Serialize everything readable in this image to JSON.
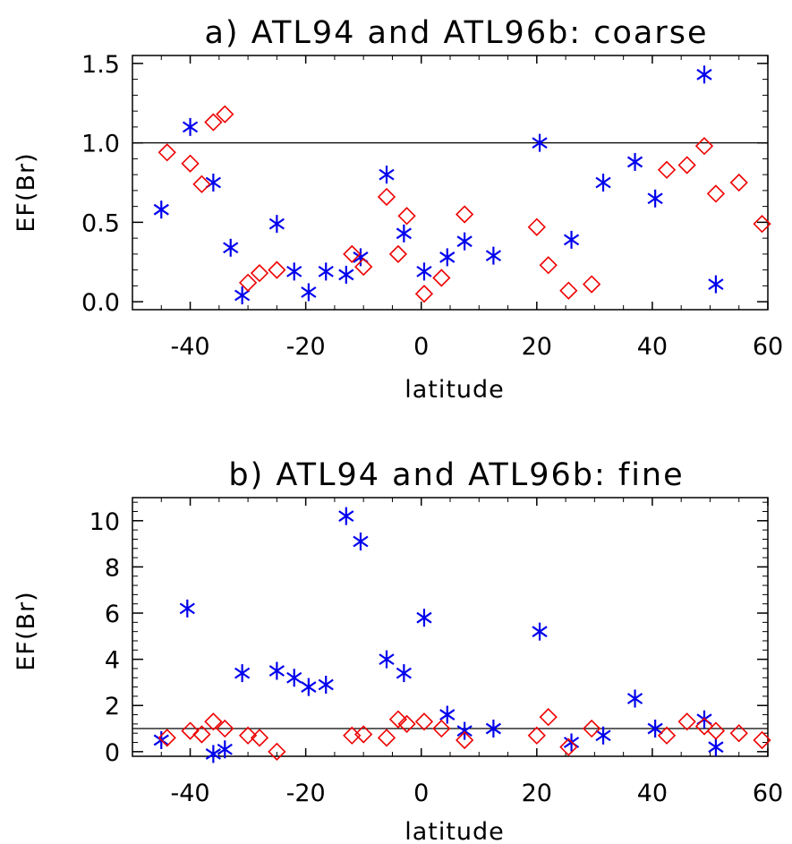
{
  "colors": {
    "series1": "#0000ee",
    "series2": "#ee0000",
    "axis": "#000000"
  },
  "chart_data": [
    {
      "type": "scatter",
      "title": "a) ATL94 and ATL96b: coarse",
      "xlabel": "latitude",
      "ylabel": "EF(Br)",
      "xlim": [
        -50,
        60
      ],
      "ylim": [
        -0.05,
        1.55
      ],
      "x_ticks": [
        -40,
        -20,
        0,
        20,
        40,
        60
      ],
      "x_tick_labels": [
        "-40",
        "-20",
        "0",
        "20",
        "40",
        "60"
      ],
      "y_ticks": [
        0.0,
        0.5,
        1.0,
        1.5
      ],
      "y_tick_labels": [
        "0.0",
        "0.5",
        "1.0",
        "1.5"
      ],
      "reference_line": 1.0,
      "series": [
        {
          "marker": "asterisk",
          "color": "#0000ee",
          "points": [
            [
              -45,
              0.58
            ],
            [
              -40,
              1.1
            ],
            [
              -36,
              0.75
            ],
            [
              -33,
              0.34
            ],
            [
              -31,
              0.04
            ],
            [
              -25,
              0.49
            ],
            [
              -22,
              0.19
            ],
            [
              -19.5,
              0.06
            ],
            [
              -16.5,
              0.19
            ],
            [
              -13,
              0.17
            ],
            [
              -10.5,
              0.28
            ],
            [
              -6,
              0.8
            ],
            [
              -3,
              0.43
            ],
            [
              0.5,
              0.19
            ],
            [
              4.5,
              0.28
            ],
            [
              7.5,
              0.38
            ],
            [
              12.5,
              0.29
            ],
            [
              20.5,
              1.0
            ],
            [
              26,
              0.39
            ],
            [
              31.5,
              0.75
            ],
            [
              37,
              0.88
            ],
            [
              40.5,
              0.65
            ],
            [
              49,
              1.43
            ],
            [
              51,
              0.11
            ]
          ]
        },
        {
          "marker": "diamond",
          "color": "#ee0000",
          "points": [
            [
              -44,
              0.94
            ],
            [
              -40,
              0.87
            ],
            [
              -38,
              0.74
            ],
            [
              -36,
              1.13
            ],
            [
              -34,
              1.18
            ],
            [
              -30,
              0.12
            ],
            [
              -28,
              0.18
            ],
            [
              -25,
              0.2
            ],
            [
              -12,
              0.3
            ],
            [
              -10,
              0.22
            ],
            [
              -6,
              0.66
            ],
            [
              -4,
              0.3
            ],
            [
              -2.5,
              0.54
            ],
            [
              0.5,
              0.05
            ],
            [
              3.5,
              0.15
            ],
            [
              7.5,
              0.55
            ],
            [
              20,
              0.47
            ],
            [
              22,
              0.23
            ],
            [
              25.5,
              0.07
            ],
            [
              29.5,
              0.11
            ],
            [
              42.5,
              0.83
            ],
            [
              46,
              0.86
            ],
            [
              49,
              0.98
            ],
            [
              51,
              0.68
            ],
            [
              55,
              0.75
            ],
            [
              59,
              0.49
            ]
          ]
        }
      ]
    },
    {
      "type": "scatter",
      "title": "b) ATL94 and ATL96b: fine",
      "xlabel": "latitude",
      "ylabel": "EF(Br)",
      "xlim": [
        -50,
        60
      ],
      "ylim": [
        -0.2,
        11
      ],
      "x_ticks": [
        -40,
        -20,
        0,
        20,
        40,
        60
      ],
      "x_tick_labels": [
        "-40",
        "-20",
        "0",
        "20",
        "40",
        "60"
      ],
      "y_ticks": [
        0,
        2,
        4,
        6,
        8,
        10
      ],
      "y_tick_labels": [
        "0",
        "2",
        "4",
        "6",
        "8",
        "10"
      ],
      "reference_line": 1.0,
      "series": [
        {
          "marker": "asterisk",
          "color": "#0000ee",
          "points": [
            [
              -45,
              0.5
            ],
            [
              -40.5,
              6.2
            ],
            [
              -36,
              -0.1
            ],
            [
              -34,
              0.1
            ],
            [
              -31,
              3.4
            ],
            [
              -25,
              3.5
            ],
            [
              -22,
              3.2
            ],
            [
              -19.5,
              2.8
            ],
            [
              -16.5,
              2.9
            ],
            [
              -13,
              10.2
            ],
            [
              -10.5,
              9.1
            ],
            [
              -6,
              4.0
            ],
            [
              -3,
              3.4
            ],
            [
              0.5,
              5.8
            ],
            [
              4.5,
              1.6
            ],
            [
              7.5,
              0.9
            ],
            [
              12.5,
              1.0
            ],
            [
              20.5,
              5.2
            ],
            [
              26,
              0.4
            ],
            [
              31.5,
              0.7
            ],
            [
              37,
              2.3
            ],
            [
              40.5,
              1.0
            ],
            [
              49,
              1.4
            ],
            [
              51,
              0.2
            ]
          ]
        },
        {
          "marker": "diamond",
          "color": "#ee0000",
          "points": [
            [
              -44,
              0.6
            ],
            [
              -40,
              0.9
            ],
            [
              -38,
              0.75
            ],
            [
              -36,
              1.3
            ],
            [
              -34,
              1.0
            ],
            [
              -30,
              0.7
            ],
            [
              -28,
              0.6
            ],
            [
              -25,
              0.0
            ],
            [
              -12,
              0.7
            ],
            [
              -10,
              0.75
            ],
            [
              -6,
              0.6
            ],
            [
              -4,
              1.4
            ],
            [
              -2.5,
              1.2
            ],
            [
              0.5,
              1.3
            ],
            [
              3.5,
              1.0
            ],
            [
              7.5,
              0.5
            ],
            [
              20,
              0.7
            ],
            [
              22,
              1.5
            ],
            [
              25.5,
              0.2
            ],
            [
              29.5,
              1.0
            ],
            [
              42.5,
              0.7
            ],
            [
              46,
              1.3
            ],
            [
              49,
              1.1
            ],
            [
              51,
              0.9
            ],
            [
              55,
              0.8
            ],
            [
              59,
              0.5
            ]
          ]
        }
      ]
    }
  ]
}
